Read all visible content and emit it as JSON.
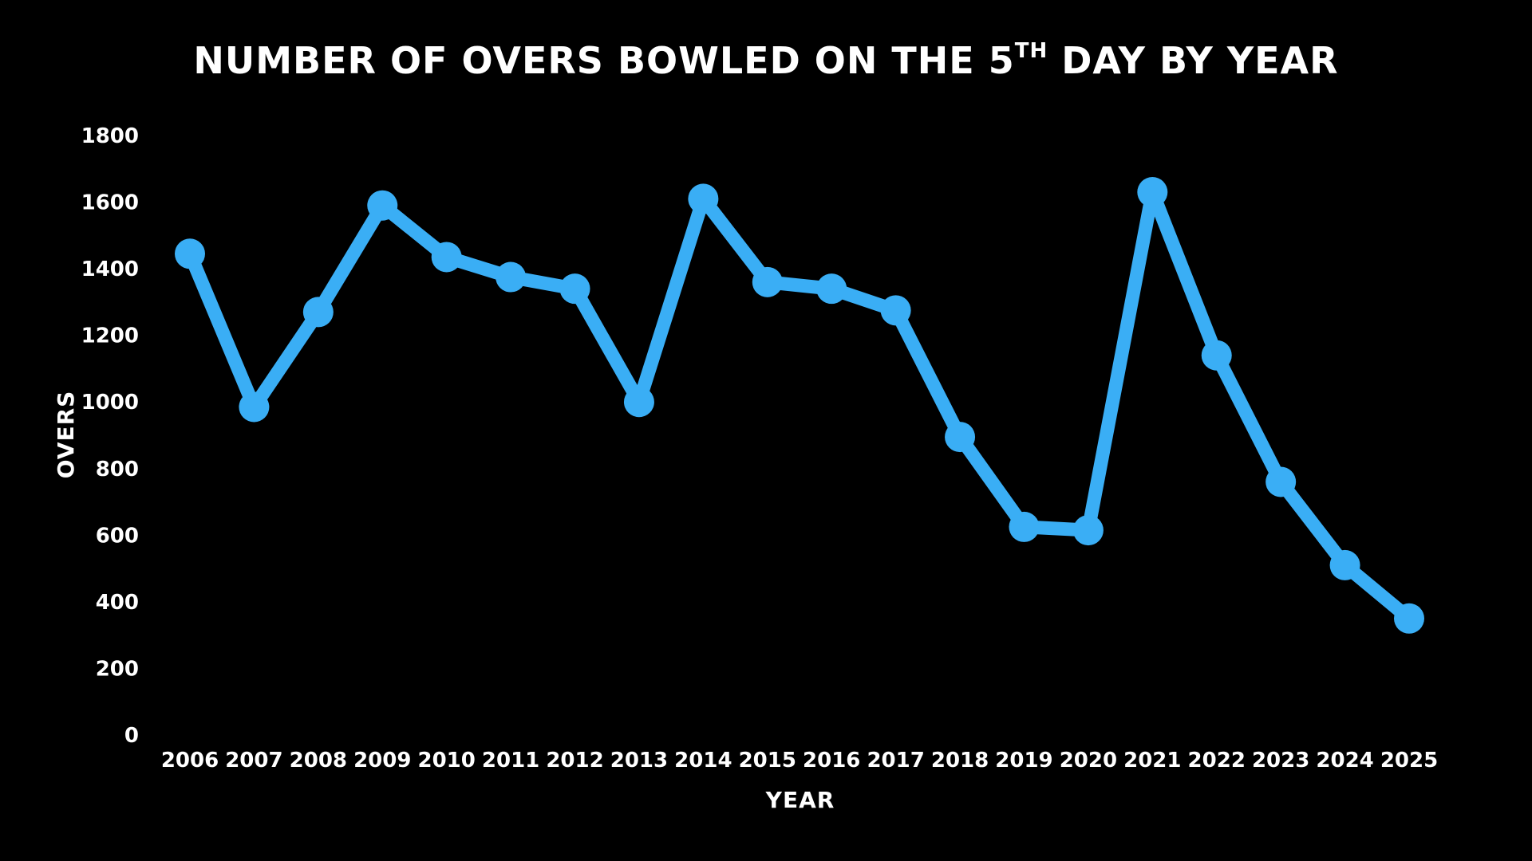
{
  "chart_data": {
    "type": "line",
    "title": "NUMBER OF OVERS BOWLED ON THE 5",
    "title_superscript": "TH",
    "title_suffix": " DAY BY YEAR",
    "xlabel": "YEAR",
    "ylabel": "OVERS",
    "ylim": [
      0,
      1800
    ],
    "yticks": [
      "0",
      "200",
      "400",
      "600",
      "800",
      "1000",
      "1200",
      "1400",
      "1600",
      "1800"
    ],
    "categories": [
      "2006",
      "2007",
      "2008",
      "2009",
      "2010",
      "2011",
      "2012",
      "2013",
      "2014",
      "2015",
      "2016",
      "2017",
      "2018",
      "2019",
      "2020",
      "2021",
      "2022",
      "2023",
      "2024",
      "2025"
    ],
    "series": [
      {
        "values": [
          1445,
          985,
          1270,
          1590,
          1435,
          1375,
          1340,
          1000,
          1610,
          1360,
          1340,
          1275,
          895,
          625,
          615,
          1630,
          1140,
          760,
          510,
          350
        ]
      }
    ],
    "grid": false,
    "colors": {
      "background": "#000000",
      "line": "#3aaef5",
      "text": "#ffffff"
    }
  }
}
